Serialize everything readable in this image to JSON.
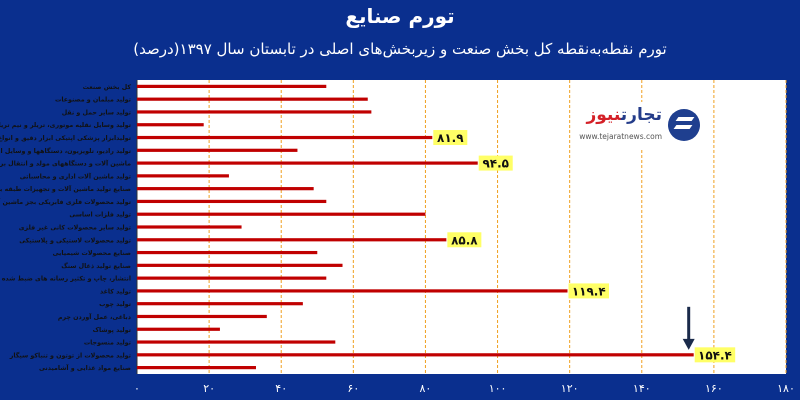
{
  "title": "تورم صنایع",
  "subtitle": "تورم نقطه‌به‌نقطه کل بخش صنعت و زیربخش‌های اصلی در تابستان سال ۱۳۹۷(درصد)",
  "logo": {
    "name_part1": "تجارت",
    "name_part2": "نیوز",
    "url": "www.tejaratnews.com"
  },
  "colors": {
    "background": "#0a2f8e",
    "plot_background": "#ffffff",
    "bar": "#c00000",
    "grid": "#f0a020",
    "label_box": "#ffff66",
    "arrow": "#1a2a4a"
  },
  "chart_data": {
    "type": "bar",
    "orientation": "horizontal",
    "title": "تورم صنایع",
    "subtitle": "تورم نقطه‌به‌نقطه کل بخش صنعت و زیربخش‌های اصلی در تابستان سال ۱۳۹۷(درصد)",
    "xlim": [
      0,
      180
    ],
    "x_ticks": [
      0,
      20,
      40,
      60,
      80,
      100,
      120,
      140,
      160,
      180
    ],
    "x_tick_labels": [
      "۰",
      "۲۰",
      "۴۰",
      "۶۰",
      "۸۰",
      "۱۰۰",
      "۱۲۰",
      "۱۴۰",
      "۱۶۰",
      "۱۸۰"
    ],
    "grid": "vertical dashed",
    "categories": [
      "کل بخش صنعت",
      "تولید مبلمان و مصنوعات",
      "تولید سایر حمل و نقل",
      "تولید وسایل نقلیه موتوری، تریلر و نیم تریلر",
      "تولیدابزار پزشکی اپتیکی ابزار دقیق و انواع ساعت",
      "تولید رادیو، تلویزیون، دستگاهها و وسایل ارتباطی",
      "ماشین آلات و دستگاههای مولد و انتقال برق",
      "تولید ماشین آلات اداری و محاسباتی",
      "صنایع تولید ماشین آلات و تجهیزات طبقه بندی نشده",
      "تولید محصولات فلزی فابریکی بجز ماشین آلات",
      "تولید فلزات اساسی",
      "تولید سایر محصولات کانی غیر فلزی",
      "تولید محصولات لاستیکی و پلاستیکی",
      "صنایع محصولات شیمیایی",
      "صنایع تولید ذغال سنگ",
      "انتشار، چاپ و تکثیر رسانه های ضبط شده",
      "تولید کاغذ",
      "تولید چوب",
      "دباغی، عمل آوردن چرم",
      "تولید پوشاک",
      "تولید منسوجات",
      "تولید محصولات از توتون و تنباکو سیگار",
      "صنایع مواد غذایی و آشامیدنی"
    ],
    "values": [
      52.5,
      64,
      65,
      18.5,
      81.9,
      44.5,
      94.5,
      25.5,
      49,
      52.5,
      80,
      29,
      85.8,
      50,
      57,
      52.5,
      119.4,
      46,
      36,
      23,
      55,
      154.4,
      33
    ],
    "data_labels": [
      {
        "index": 4,
        "text": "۸۱.۹"
      },
      {
        "index": 6,
        "text": "۹۴.۵"
      },
      {
        "index": 12,
        "text": "۸۵.۸"
      },
      {
        "index": 16,
        "text": "۱۱۹.۴"
      },
      {
        "index": 21,
        "text": "۱۵۴.۴"
      }
    ],
    "annotation_arrow_index": 21
  }
}
